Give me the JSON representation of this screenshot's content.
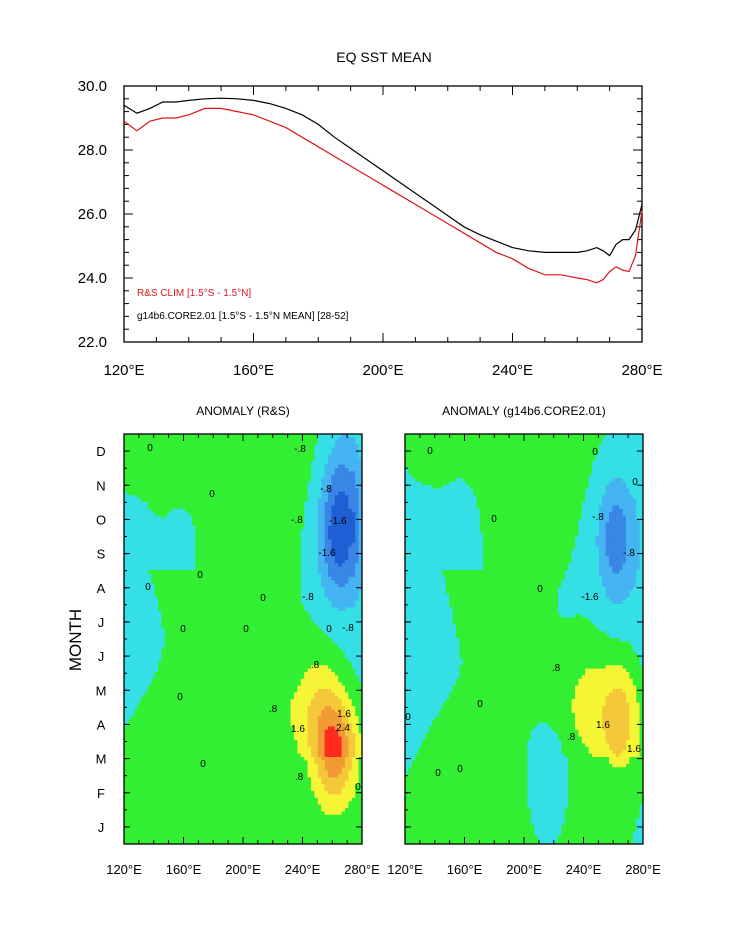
{
  "figure_title": "EQ SST MEAN",
  "chart_data": [
    {
      "type": "line",
      "title": "EQ SST MEAN",
      "xlabel": "",
      "ylabel": "",
      "xlim": [
        120,
        280
      ],
      "ylim": [
        22,
        30
      ],
      "x_ticks": [
        120,
        160,
        200,
        240,
        280
      ],
      "x_tick_labels": [
        "120°E",
        "160°E",
        "200°E",
        "240°E",
        "280°E"
      ],
      "y_ticks": [
        22,
        24,
        26,
        28,
        30
      ],
      "y_tick_labels": [
        "22.0",
        "24.0",
        "26.0",
        "28.0",
        "30.0"
      ],
      "x": [
        120,
        124,
        128,
        132,
        136,
        140,
        145,
        150,
        155,
        160,
        165,
        170,
        175,
        180,
        185,
        190,
        195,
        200,
        205,
        210,
        215,
        220,
        225,
        230,
        235,
        240,
        245,
        250,
        255,
        260,
        263,
        266,
        268,
        270,
        272,
        274,
        276,
        278,
        280
      ],
      "series": [
        {
          "name": "R&S CLIM [1.5°S - 1.5°N]",
          "color": "#e0141e",
          "values": [
            28.9,
            28.6,
            28.9,
            29.0,
            29.0,
            29.1,
            29.3,
            29.3,
            29.2,
            29.1,
            28.9,
            28.7,
            28.4,
            28.1,
            27.8,
            27.5,
            27.2,
            26.9,
            26.6,
            26.3,
            26.0,
            25.7,
            25.4,
            25.1,
            24.8,
            24.6,
            24.3,
            24.1,
            24.1,
            24.0,
            23.95,
            23.85,
            23.95,
            24.2,
            24.35,
            24.25,
            24.2,
            24.7,
            26.1
          ]
        },
        {
          "name": "g14b6.CORE2.01 [1.5°S - 1.5°N MEAN] [28-52]",
          "color": "#000000",
          "values": [
            29.4,
            29.15,
            29.3,
            29.5,
            29.5,
            29.55,
            29.6,
            29.62,
            29.6,
            29.55,
            29.45,
            29.3,
            29.1,
            28.8,
            28.4,
            28.05,
            27.7,
            27.35,
            27.0,
            26.65,
            26.3,
            25.95,
            25.6,
            25.35,
            25.15,
            24.95,
            24.85,
            24.8,
            24.8,
            24.8,
            24.85,
            24.95,
            24.85,
            24.7,
            25.05,
            25.2,
            25.2,
            25.5,
            26.3
          ]
        }
      ],
      "legend": [
        "R&S CLIM [1.5°S - 1.5°N]",
        "g14b6.CORE2.01 [1.5°S - 1.5°N MEAN] [28-52]"
      ],
      "legend_position": "bottom-left"
    },
    {
      "type": "heatmap",
      "title": "ANOMALY (R&S)",
      "ylabel": "MONTH",
      "xlim": [
        120,
        280
      ],
      "x_tick_labels": [
        "120°E",
        "160°E",
        "200°E",
        "240°E",
        "280°E"
      ],
      "y_tick_labels": [
        "J",
        "F",
        "M",
        "A",
        "M",
        "J",
        "J",
        "A",
        "S",
        "O",
        "N",
        "D"
      ],
      "contour_labels": [
        "0",
        "0",
        "0",
        "0",
        "0",
        "0",
        "0",
        "0",
        "0",
        "0",
        "-.8",
        "-.8",
        "-.8",
        "-1.6",
        "-1.6",
        "-.8",
        "-.8",
        ".8",
        ".8",
        ".8",
        "1.6",
        "1.6",
        "2.4",
        "0"
      ],
      "anomalies": [
        {
          "lon": 265,
          "month": 8.5,
          "value": -2.8
        },
        {
          "lon": 268,
          "month": 10.5,
          "value": -1.0
        },
        {
          "lon": 262,
          "month": 2.3,
          "value": 3.0
        },
        {
          "lon": 250,
          "month": 3.8,
          "value": 1.0
        },
        {
          "lon": 130,
          "month": 7.5,
          "value": -0.4
        },
        {
          "lon": 160,
          "month": 8.5,
          "value": -0.3
        }
      ]
    },
    {
      "type": "heatmap",
      "title": "ANOMALY (g14b6.CORE2.01)",
      "ylabel": "",
      "xlim": [
        120,
        280
      ],
      "x_tick_labels": [
        "120°E",
        "160°E",
        "200°E",
        "240°E",
        "280°E"
      ],
      "y_tick_labels": [
        "J",
        "F",
        "M",
        "A",
        "M",
        "J",
        "J",
        "A",
        "S",
        "O",
        "N",
        "D"
      ],
      "contour_labels": [
        "0",
        "0",
        "0",
        "0",
        "0",
        "0",
        "0",
        "0",
        "0",
        "-.8",
        "-.8",
        "-1.6",
        ".8",
        ".8",
        "1.6",
        "1.6"
      ],
      "anomalies": [
        {
          "lon": 262,
          "month": 8.5,
          "value": -2.0
        },
        {
          "lon": 265,
          "month": 3.3,
          "value": 2.1
        },
        {
          "lon": 245,
          "month": 4.0,
          "value": 0.9
        },
        {
          "lon": 215,
          "month": 1.3,
          "value": -0.9
        },
        {
          "lon": 140,
          "month": 7.5,
          "value": -0.4
        },
        {
          "lon": 160,
          "month": 9.0,
          "value": -0.3
        }
      ]
    }
  ]
}
